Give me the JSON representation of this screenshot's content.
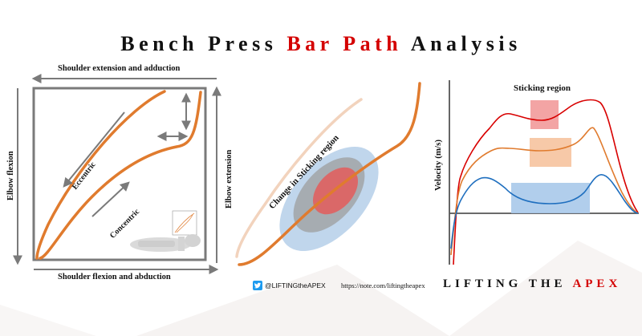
{
  "title": {
    "part1": "Bench Press ",
    "part2": "Bar Path",
    "part3": " Analysis"
  },
  "colors": {
    "accent": "#d40000",
    "bar_path": "#e07b2e",
    "arrow": "#7a7a7a",
    "twitter": "#1d9bf0"
  },
  "left_panel": {
    "top_label": "Shoulder extension and adduction",
    "bottom_label": "Shoulder flexion and abduction",
    "left_label": "Elbow flexion",
    "right_label": "Elbow extension",
    "eccentric": "Eccentric",
    "concentric": "Concentric"
  },
  "middle_panel": {
    "label": "Change in Sticking region"
  },
  "right_panel": {
    "title": "Sticking region",
    "ylabel": "Velocity (m/s)"
  },
  "footer": {
    "handle": "@LIFTINGtheAPEX",
    "url": "https://note.com/liftingtheapex",
    "brand_prefix": "LIFTING THE ",
    "brand_accent": "APEX",
    "twitter_icon": "twitter-bird-icon"
  }
}
